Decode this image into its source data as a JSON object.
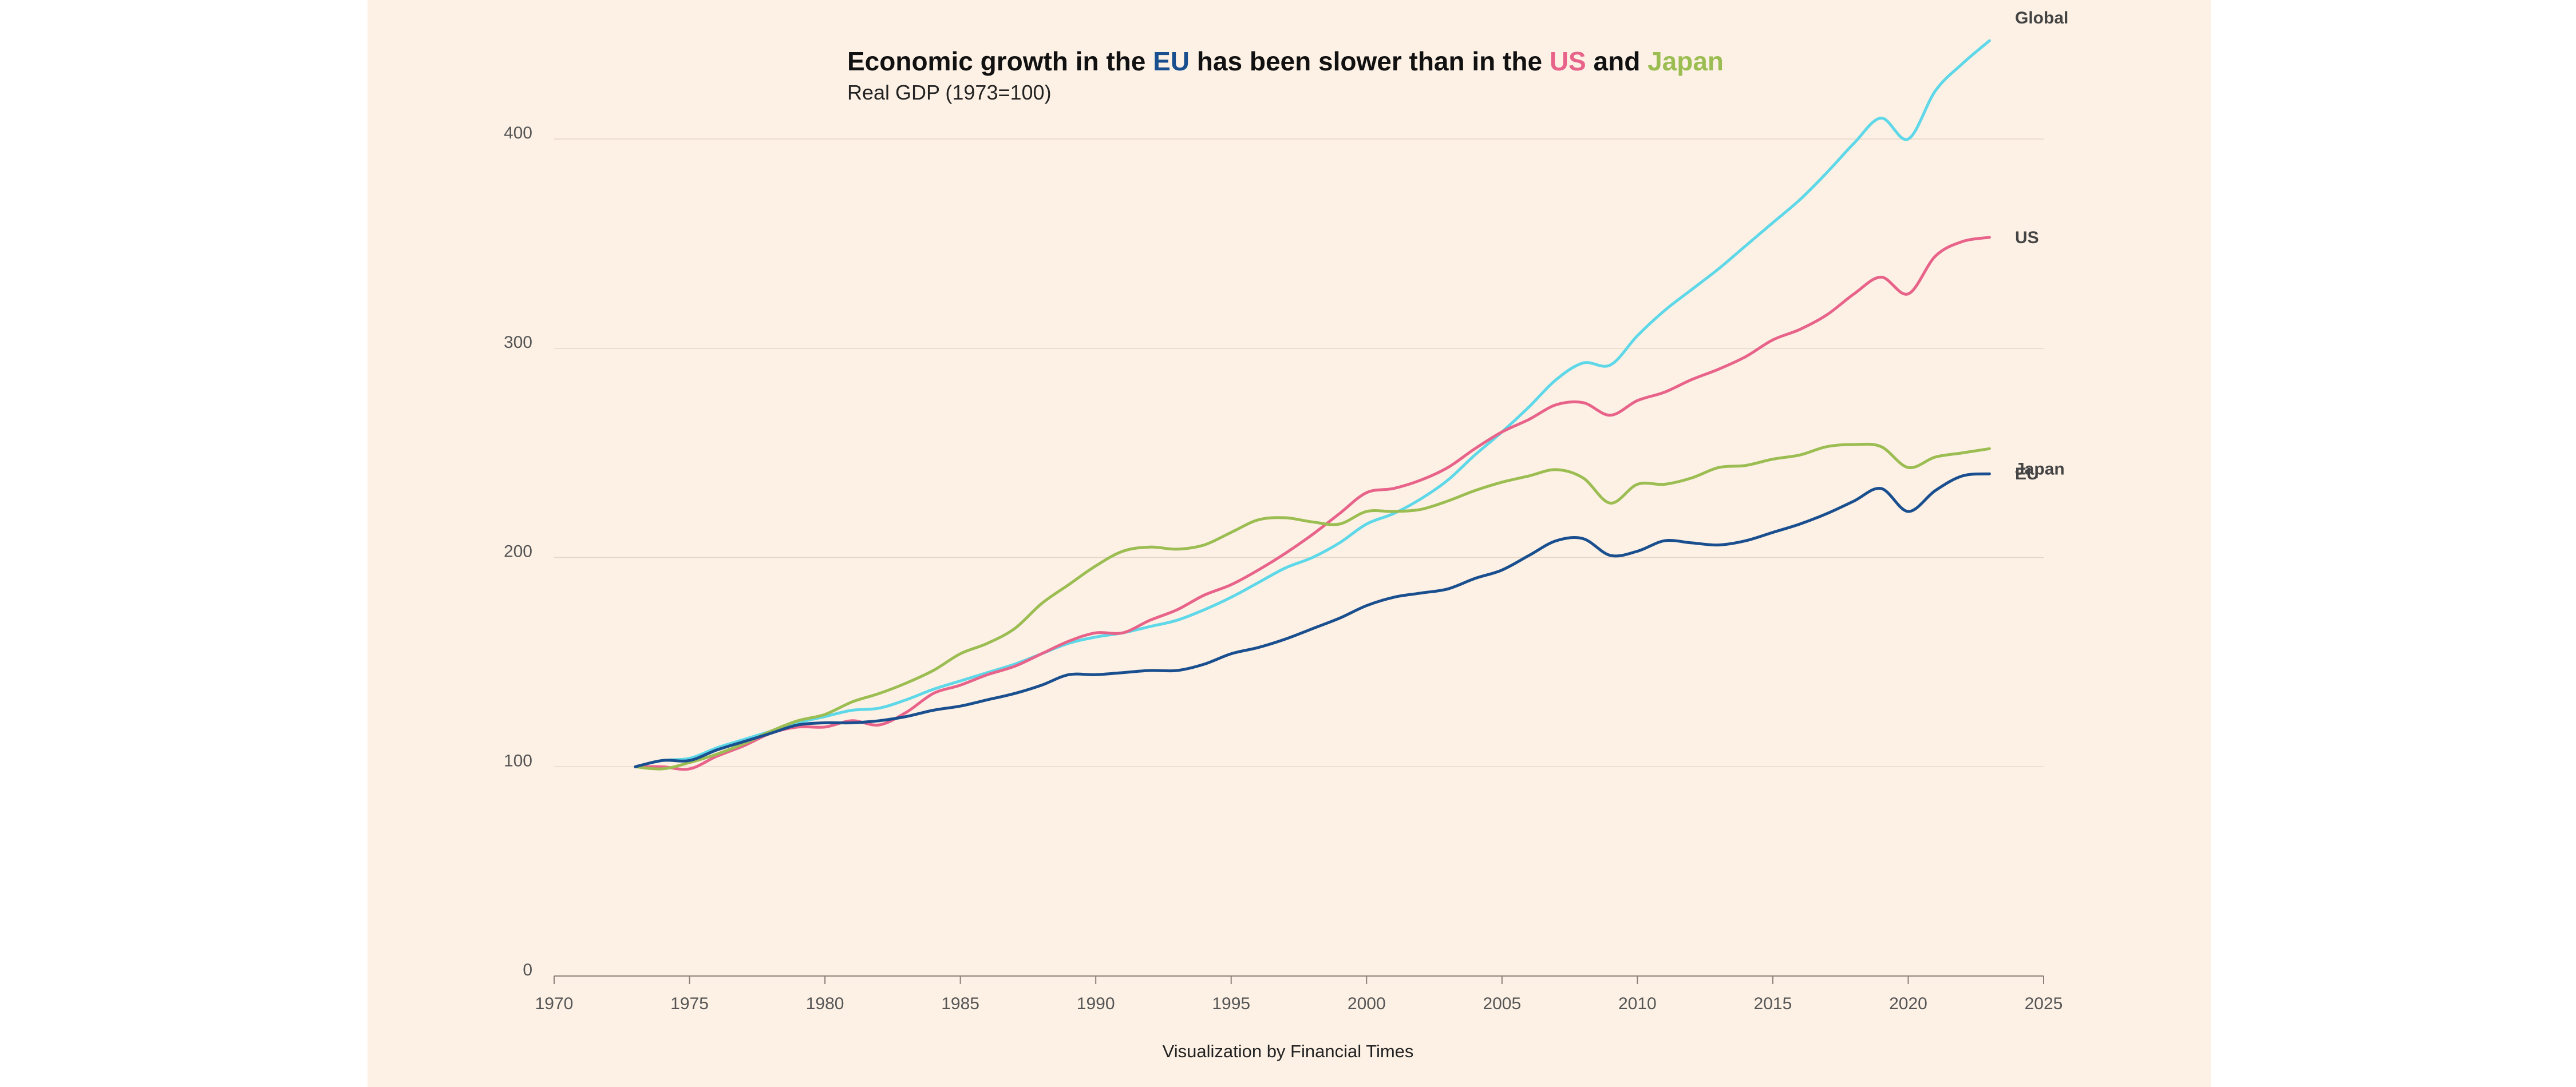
{
  "chart_data": {
    "type": "line",
    "title_parts": [
      {
        "text": "Economic growth in the ",
        "color": "#111111"
      },
      {
        "text": "EU",
        "color": "#1a4f8f"
      },
      {
        "text": " has been slower than in the ",
        "color": "#111111"
      },
      {
        "text": "US",
        "color": "#e8638a"
      },
      {
        "text": " and ",
        "color": "#111111"
      },
      {
        "text": "Japan",
        "color": "#9bbd52"
      }
    ],
    "subtitle": "Real GDP (1973=100)",
    "footer": "Visualization by Financial Times",
    "xlim": [
      1970,
      2025
    ],
    "ylim": [
      0,
      400
    ],
    "x_ticks": [
      1970,
      1975,
      1980,
      1985,
      1990,
      1995,
      2000,
      2005,
      2010,
      2015,
      2020,
      2025
    ],
    "y_ticks": [
      0,
      100,
      200,
      300,
      400
    ],
    "grid": "horizontal",
    "years": [
      1973,
      1974,
      1975,
      1976,
      1977,
      1978,
      1979,
      1980,
      1981,
      1982,
      1983,
      1984,
      1985,
      1986,
      1987,
      1988,
      1989,
      1990,
      1991,
      1992,
      1993,
      1994,
      1995,
      1996,
      1997,
      1998,
      1999,
      2000,
      2001,
      2002,
      2003,
      2004,
      2005,
      2006,
      2007,
      2008,
      2009,
      2010,
      2011,
      2012,
      2013,
      2014,
      2015,
      2016,
      2017,
      2018,
      2019,
      2020,
      2021,
      2022,
      2023
    ],
    "series": [
      {
        "name": "Global",
        "color": "#5ed8e8",
        "values": [
          100,
          103,
          104,
          109,
          113,
          117,
          121,
          124,
          127,
          128,
          132,
          137,
          141,
          145,
          149,
          154,
          159,
          162,
          164,
          167,
          170,
          175,
          181,
          188,
          195,
          200,
          207,
          216,
          221,
          228,
          237,
          249,
          260,
          272,
          285,
          293,
          292,
          306,
          318,
          328,
          338,
          349,
          360,
          371,
          384,
          398,
          410,
          400,
          423,
          436,
          447
        ]
      },
      {
        "name": "US",
        "color": "#e8638a",
        "values": [
          100,
          100,
          99,
          105,
          110,
          116,
          119,
          119,
          122,
          120,
          126,
          135,
          139,
          144,
          148,
          154,
          160,
          164,
          164,
          170,
          175,
          182,
          187,
          194,
          202,
          211,
          221,
          231,
          233,
          237,
          243,
          252,
          260,
          266,
          273,
          274,
          268,
          275,
          279,
          285,
          290,
          296,
          304,
          309,
          316,
          326,
          334,
          326,
          344,
          351,
          353
        ]
      },
      {
        "name": "Japan",
        "color": "#9bbd52",
        "values": [
          100,
          99,
          102,
          106,
          111,
          117,
          122,
          125,
          131,
          135,
          140,
          146,
          154,
          159,
          166,
          178,
          187,
          196,
          203,
          205,
          204,
          206,
          212,
          218,
          219,
          217,
          216,
          222,
          222,
          223,
          227,
          232,
          236,
          239,
          242,
          238,
          226,
          235,
          235,
          238,
          243,
          244,
          247,
          249,
          253,
          254,
          253,
          243,
          248,
          250,
          252
        ]
      },
      {
        "name": "EU",
        "color": "#1a4f8f",
        "values": [
          100,
          103,
          103,
          108,
          112,
          116,
          120,
          121,
          121,
          122,
          124,
          127,
          129,
          132,
          135,
          139,
          144,
          144,
          145,
          146,
          146,
          149,
          154,
          157,
          161,
          166,
          171,
          177,
          181,
          183,
          185,
          190,
          194,
          201,
          208,
          209,
          201,
          203,
          208,
          207,
          206,
          208,
          212,
          216,
          221,
          227,
          233,
          222,
          232,
          239,
          240
        ]
      }
    ]
  }
}
